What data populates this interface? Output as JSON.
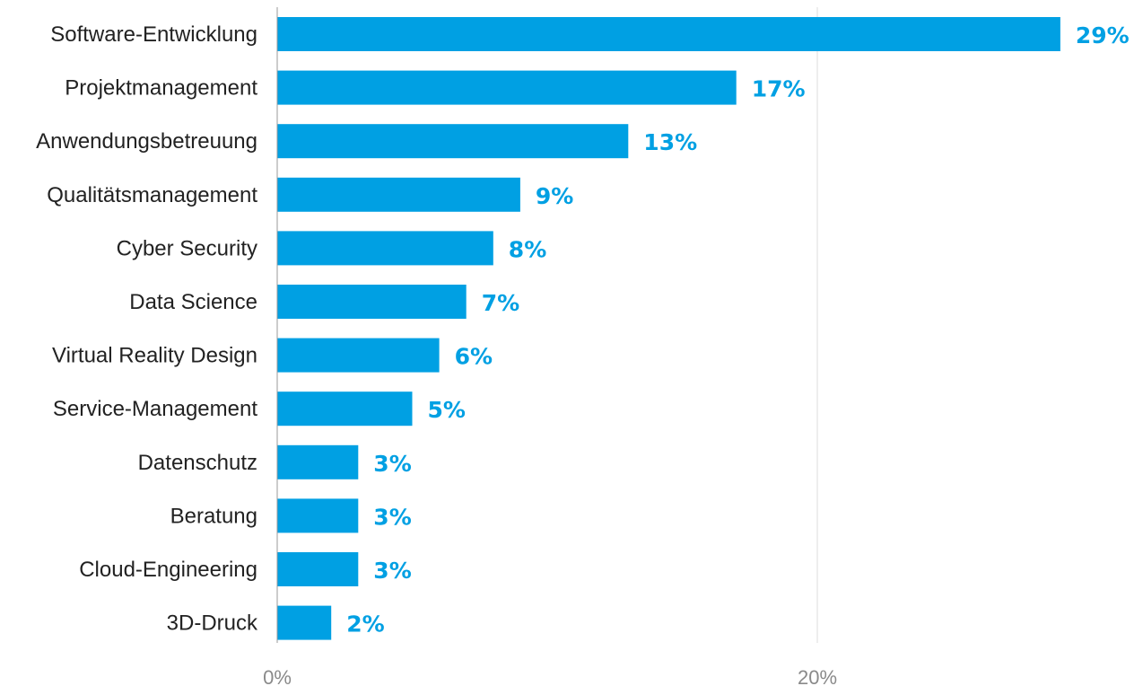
{
  "chart_data": {
    "type": "bar",
    "orientation": "horizontal",
    "categories": [
      "Software-Entwicklung",
      "Projektmanagement",
      "Anwendungsbetreuung",
      "Qualitätsmanagement",
      "Cyber Security",
      "Data Science",
      "Virtual Reality Design",
      "Service-Management",
      "Datenschutz",
      "Beratung",
      "Cloud-Engineering",
      "3D-Druck"
    ],
    "values": [
      29,
      17,
      13,
      9,
      8,
      7,
      6,
      5,
      3,
      3,
      3,
      2
    ],
    "value_labels": [
      "29%",
      "17%",
      "13%",
      "9%",
      "8%",
      "7%",
      "6%",
      "5%",
      "3%",
      "3%",
      "3%",
      "2%"
    ],
    "xlim": [
      0,
      30
    ],
    "x_ticks": [
      0,
      20
    ],
    "x_tick_labels": [
      "0%",
      "20%"
    ],
    "grid": true,
    "title": "",
    "xlabel": "",
    "ylabel": "",
    "colors": {
      "bar": "#00a0e3",
      "value_label": "#00a0e3",
      "axis": "#999999",
      "grid": "#dddddd"
    }
  }
}
